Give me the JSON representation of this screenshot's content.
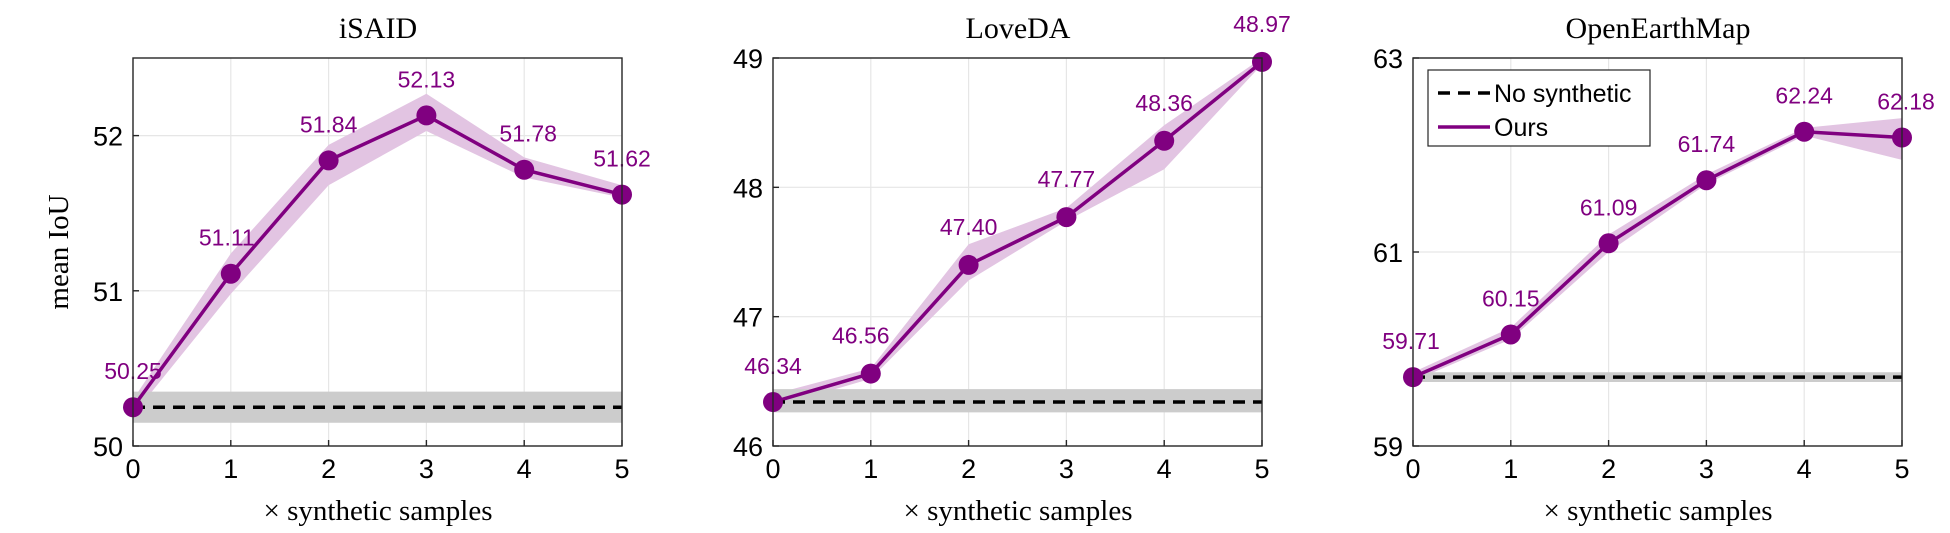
{
  "colors": {
    "series": "#800080",
    "band": "#e2c4e2",
    "baseline": "#000000",
    "baseline_band": "#cccccc",
    "grid": "#e6e6e6",
    "axis": "#262626"
  },
  "chart_data": [
    {
      "type": "line",
      "title": "iSAID",
      "xlabel": "× synthetic samples",
      "ylabel": "mean IoU",
      "xlim": [
        0,
        5
      ],
      "ylim": [
        50,
        52.5
      ],
      "xticks": [
        0,
        1,
        2,
        3,
        4,
        5
      ],
      "yticks": [
        50,
        51,
        52
      ],
      "grid": true,
      "series": [
        {
          "name": "Ours",
          "style": "solid-marker",
          "x": [
            0,
            1,
            2,
            3,
            4,
            5
          ],
          "values": [
            50.25,
            51.11,
            51.84,
            52.13,
            51.78,
            51.62
          ],
          "band_low": [
            50.2,
            50.98,
            51.68,
            52.03,
            51.73,
            51.6
          ],
          "band_high": [
            50.3,
            51.24,
            51.94,
            52.27,
            51.86,
            51.68
          ],
          "labels": [
            "50.25",
            "51.11",
            "51.84",
            "52.13",
            "51.78",
            "51.62"
          ]
        },
        {
          "name": "No synthetic",
          "style": "dashed",
          "x": [
            0,
            5
          ],
          "values": [
            50.25,
            50.25
          ],
          "band_low": [
            50.15,
            50.15
          ],
          "band_high": [
            50.35,
            50.35
          ]
        }
      ]
    },
    {
      "type": "line",
      "title": "LoveDA",
      "xlabel": "× synthetic samples",
      "ylabel": "",
      "xlim": [
        0,
        5
      ],
      "ylim": [
        46,
        49
      ],
      "xticks": [
        0,
        1,
        2,
        3,
        4,
        5
      ],
      "yticks": [
        46,
        47,
        48,
        49
      ],
      "grid": true,
      "series": [
        {
          "name": "Ours",
          "style": "solid-marker",
          "x": [
            0,
            1,
            2,
            3,
            4,
            5
          ],
          "values": [
            46.34,
            46.56,
            47.4,
            47.77,
            48.36,
            48.97
          ],
          "band_low": [
            46.3,
            46.52,
            47.28,
            47.74,
            48.14,
            48.95
          ],
          "band_high": [
            46.4,
            46.6,
            47.56,
            47.84,
            48.48,
            49.0
          ],
          "labels": [
            "46.34",
            "46.56",
            "47.40",
            "47.77",
            "48.36",
            "48.97"
          ]
        },
        {
          "name": "No synthetic",
          "style": "dashed",
          "x": [
            0,
            5
          ],
          "values": [
            46.34,
            46.34
          ],
          "band_low": [
            46.26,
            46.26
          ],
          "band_high": [
            46.44,
            46.44
          ]
        }
      ]
    },
    {
      "type": "line",
      "title": "OpenEarthMap",
      "xlabel": "× synthetic samples",
      "ylabel": "",
      "xlim": [
        0,
        5
      ],
      "ylim": [
        59,
        63
      ],
      "xticks": [
        0,
        1,
        2,
        3,
        4,
        5
      ],
      "yticks": [
        59,
        61,
        63
      ],
      "grid": true,
      "legend": {
        "placement": "top-left",
        "entries": [
          "No synthetic",
          "Ours"
        ]
      },
      "series": [
        {
          "name": "Ours",
          "style": "solid-marker",
          "x": [
            0,
            1,
            2,
            3,
            4,
            5
          ],
          "values": [
            59.71,
            60.15,
            61.09,
            61.74,
            62.24,
            62.18
          ],
          "band_low": [
            59.67,
            60.1,
            61.0,
            61.7,
            62.2,
            61.95
          ],
          "band_high": [
            59.76,
            60.22,
            61.18,
            61.8,
            62.28,
            62.38
          ],
          "labels": [
            "59.71",
            "60.15",
            "61.09",
            "61.74",
            "62.24",
            "62.18"
          ]
        },
        {
          "name": "No synthetic",
          "style": "dashed",
          "x": [
            0,
            5
          ],
          "values": [
            59.71,
            59.71
          ],
          "band_low": [
            59.66,
            59.66
          ],
          "band_high": [
            59.76,
            59.76
          ]
        }
      ]
    }
  ]
}
